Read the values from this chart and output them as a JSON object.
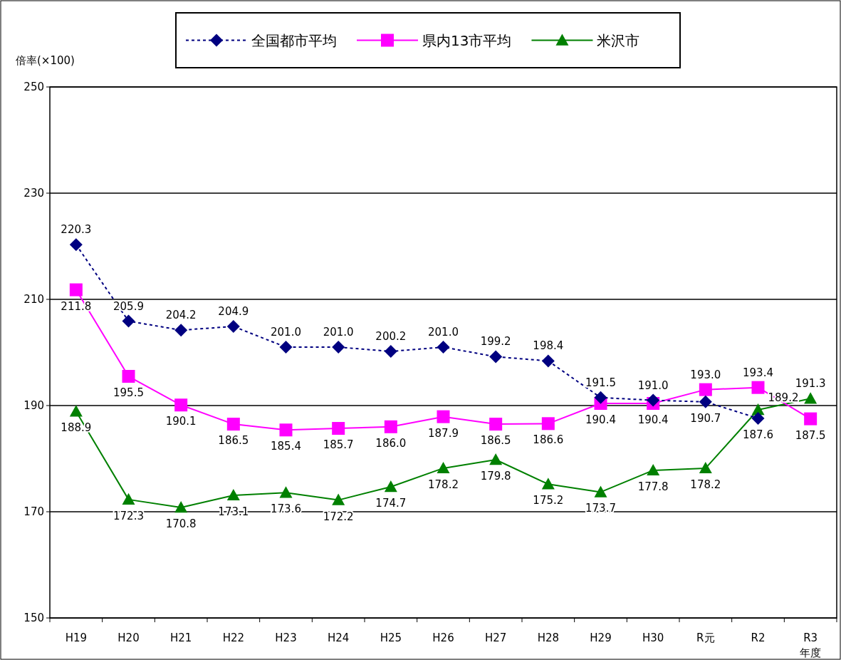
{
  "chart_data": {
    "type": "line",
    "ylabel": "倍率(×100)",
    "xlabel": "年度",
    "categories": [
      "H19",
      "H20",
      "H21",
      "H22",
      "H23",
      "H24",
      "H25",
      "H26",
      "H27",
      "H28",
      "H29",
      "H30",
      "R元",
      "R2",
      "R3"
    ],
    "series": [
      {
        "name": "全国都市平均",
        "color": "#000080",
        "marker": "diamond",
        "line_style": "dotted",
        "values": [
          220.3,
          205.9,
          204.2,
          204.9,
          201.0,
          201.0,
          200.2,
          201.0,
          199.2,
          198.4,
          191.5,
          191.0,
          190.7,
          187.6,
          null
        ],
        "value_labels": [
          "220.3",
          "205.9",
          "204.2",
          "204.9",
          "201.0",
          "201.0",
          "200.2",
          "201.0",
          "199.2",
          "198.4",
          "191.5",
          "191.0",
          "190.7",
          "187.6",
          null
        ]
      },
      {
        "name": "県内13市平均",
        "color": "#ff00ff",
        "marker": "square",
        "line_style": "solid",
        "values": [
          211.8,
          195.5,
          190.1,
          186.5,
          185.4,
          185.7,
          186.0,
          187.9,
          186.5,
          186.6,
          190.4,
          190.4,
          193.0,
          193.4,
          187.5
        ],
        "value_labels": [
          "211.8",
          "195.5",
          "190.1",
          "186.5",
          "185.4",
          "185.7",
          "186.0",
          "187.9",
          "186.5",
          "186.6",
          "190.4",
          "190.4",
          "193.0",
          "193.4",
          "187.5"
        ]
      },
      {
        "name": "米沢市",
        "color": "#008000",
        "marker": "triangle",
        "line_style": "solid",
        "values": [
          188.9,
          172.3,
          170.8,
          173.1,
          173.6,
          172.2,
          174.7,
          178.2,
          179.8,
          175.2,
          173.7,
          177.8,
          178.2,
          189.2,
          191.3
        ],
        "value_labels": [
          "188.9",
          "172.3",
          "170.8",
          "173.1",
          "173.6",
          "172.2",
          "174.7",
          "178.2",
          "179.8",
          "175.2",
          "173.7",
          "177.8",
          "178.2",
          "189.2",
          "191.3"
        ]
      }
    ],
    "ylim": [
      150,
      250
    ],
    "yticks": [
      150,
      170,
      190,
      210,
      230,
      250
    ],
    "grid": "y",
    "legend": "top"
  }
}
